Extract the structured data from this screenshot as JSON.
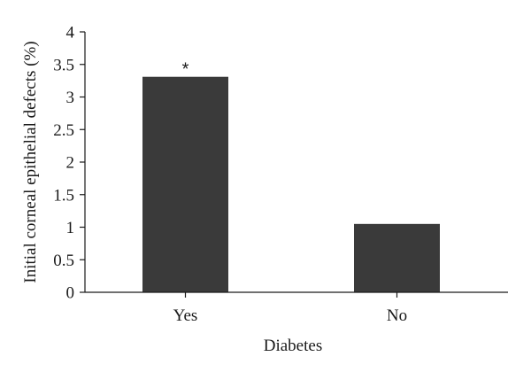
{
  "chart_data": {
    "type": "bar",
    "categories": [
      "Yes",
      "No"
    ],
    "values": [
      3.31,
      1.05
    ],
    "title": "",
    "xlabel": "Diabetes",
    "ylabel": "Initial corneal epithelial defects (%)",
    "ylim": [
      0,
      4
    ],
    "yticks": [
      0,
      0.5,
      1,
      1.5,
      2,
      2.5,
      3,
      3.5,
      4
    ],
    "ytick_labels": [
      "0",
      "0.5",
      "1",
      "1.5",
      "2",
      "2.5",
      "3",
      "3.5",
      "4"
    ],
    "annotations": [
      {
        "category": "Yes",
        "text": "*"
      }
    ],
    "grid": false,
    "legend": "none",
    "bar_color": "#3a3a3a"
  }
}
